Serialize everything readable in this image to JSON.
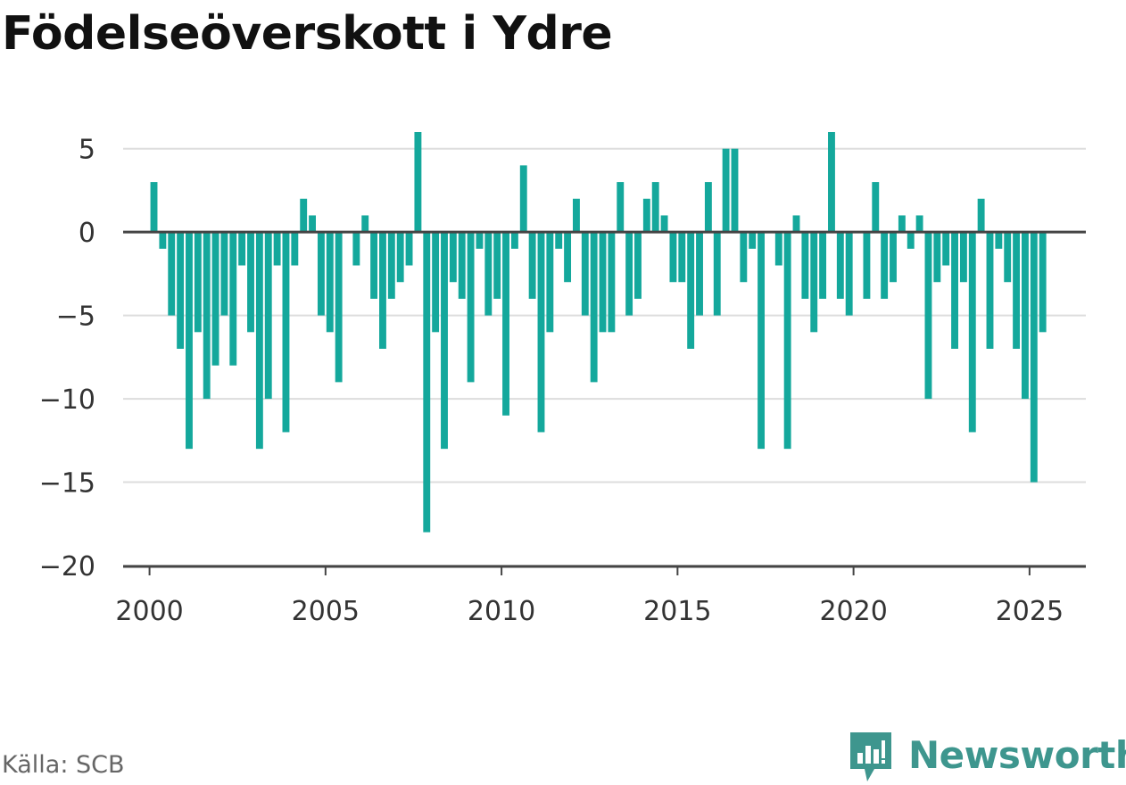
{
  "title": "Födelseöverskott i Ydre",
  "source": "Källa: SCB",
  "brand": {
    "name": "Newsworthy",
    "icon": "newsworthy-logo-icon",
    "color": "#3e968e"
  },
  "colors": {
    "bar": "#14a89c",
    "zero_line": "#444444",
    "grid": "#dddddd",
    "axis_text": "#333333"
  },
  "chart_data": {
    "type": "bar",
    "title": "Födelseöverskott i Ydre",
    "xlabel": "",
    "ylabel": "",
    "ylim": [
      -20,
      6
    ],
    "xlim": [
      1999.25,
      2026.6
    ],
    "grid": true,
    "y_ticks": [
      5,
      0,
      -5,
      -10,
      -15,
      -20
    ],
    "y_tick_labels": [
      "5",
      "0",
      "−5",
      "−10",
      "−15",
      "−20"
    ],
    "x_ticks": [
      2000,
      2005,
      2010,
      2015,
      2020,
      2025
    ],
    "x_tick_labels": [
      "2000",
      "2005",
      "2010",
      "2015",
      "2020",
      "2025"
    ],
    "bar_width_years": 0.2,
    "series": [
      {
        "x": [
          2000.125,
          2000.375,
          2000.625,
          2000.875,
          2001.125,
          2001.375,
          2001.625,
          2001.875,
          2002.125,
          2002.375,
          2002.625,
          2002.875,
          2003.125,
          2003.375,
          2003.625,
          2003.875,
          2004.125,
          2004.375,
          2004.625,
          2004.875,
          2005.125,
          2005.375,
          2005.625,
          2005.875,
          2006.125,
          2006.375,
          2006.625,
          2006.875,
          2007.125,
          2007.375,
          2007.625,
          2007.875,
          2008.125,
          2008.375,
          2008.625,
          2008.875,
          2009.125,
          2009.375,
          2009.625,
          2009.875,
          2010.125,
          2010.375,
          2010.625,
          2010.875,
          2011.125,
          2011.375,
          2011.625,
          2011.875,
          2012.125,
          2012.375,
          2012.625,
          2012.875,
          2013.125,
          2013.375,
          2013.625,
          2013.875,
          2014.125,
          2014.375,
          2014.625,
          2014.875,
          2015.125,
          2015.375,
          2015.625,
          2015.875,
          2016.125,
          2016.375,
          2016.625,
          2016.875,
          2017.125,
          2017.375,
          2017.625,
          2017.875,
          2018.125,
          2018.375,
          2018.625,
          2018.875,
          2019.125,
          2019.375,
          2019.625,
          2019.875,
          2020.125,
          2020.375,
          2020.625,
          2020.875,
          2021.125,
          2021.375,
          2021.625,
          2021.875,
          2022.125,
          2022.375,
          2022.625,
          2022.875,
          2023.125,
          2023.375,
          2023.625,
          2023.875,
          2024.125,
          2024.375,
          2024.625,
          2024.875,
          2025.125,
          2025.375
        ],
        "values": [
          3,
          -1,
          -5,
          -7,
          -13,
          -6,
          -10,
          -8,
          -5,
          -8,
          -2,
          -6,
          -13,
          -10,
          -2,
          -12,
          -2,
          2,
          1,
          -5,
          -6,
          -9,
          0,
          -2,
          1,
          -4,
          -7,
          -4,
          -3,
          -2,
          6,
          -18,
          -6,
          -13,
          -3,
          -4,
          -9,
          -1,
          -5,
          -4,
          -11,
          -1,
          4,
          -4,
          -12,
          -6,
          -1,
          -3,
          2,
          -5,
          -9,
          -6,
          -6,
          3,
          -5,
          -4,
          2,
          3,
          1,
          -3,
          -3,
          -7,
          -5,
          3,
          -5,
          5,
          5,
          -3,
          -1,
          -13,
          0,
          -2,
          -13,
          1,
          -4,
          -6,
          -4,
          6,
          -4,
          -5,
          0,
          -4,
          3,
          -4,
          -3,
          1,
          -1,
          1,
          -10,
          -3,
          -2,
          -7,
          -3,
          -12,
          2,
          -7,
          -1,
          -3,
          -7,
          -10,
          -15,
          -6
        ]
      }
    ]
  }
}
